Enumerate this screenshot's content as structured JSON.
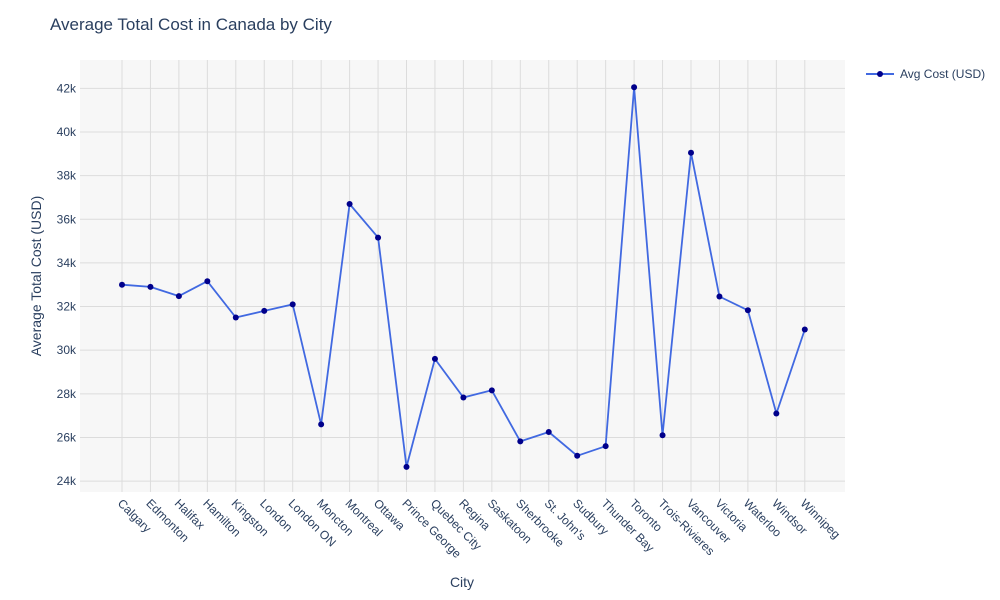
{
  "chart_data": {
    "type": "line",
    "title": "Average Total Cost in Canada by City",
    "xlabel": "City",
    "ylabel": "Average Total Cost (USD)",
    "ylim": [
      23500,
      43300
    ],
    "yticks": [
      24000,
      26000,
      28000,
      30000,
      32000,
      34000,
      36000,
      38000,
      40000,
      42000
    ],
    "ytick_labels": [
      "24k",
      "26k",
      "28k",
      "30k",
      "32k",
      "34k",
      "36k",
      "38k",
      "40k",
      "42k"
    ],
    "grid": true,
    "legend_position": "top-right",
    "categories": [
      "Calgary",
      "Edmonton",
      "Halifax",
      "Hamilton",
      "Kingston",
      "London",
      "London ON",
      "Moncton",
      "Montreal",
      "Ottawa",
      "Prince George",
      "Quebec City",
      "Regina",
      "Saskatoon",
      "Sherbrooke",
      "St. John's",
      "Sudbury",
      "Thunder Bay",
      "Toronto",
      "Trois-Rivieres",
      "Vancouver",
      "Victoria",
      "Waterloo",
      "Windsor",
      "Winnipeg"
    ],
    "series": [
      {
        "name": "Avg Cost (USD)",
        "line_color": "#4169e1",
        "marker_color": "#00008b",
        "values": [
          33000,
          32900,
          32480,
          33160,
          31500,
          31800,
          32100,
          26600,
          36700,
          35160,
          24650,
          29600,
          27830,
          28160,
          25820,
          26250,
          25160,
          25600,
          42050,
          26100,
          39050,
          32460,
          31830,
          27100,
          30950
        ]
      }
    ]
  }
}
